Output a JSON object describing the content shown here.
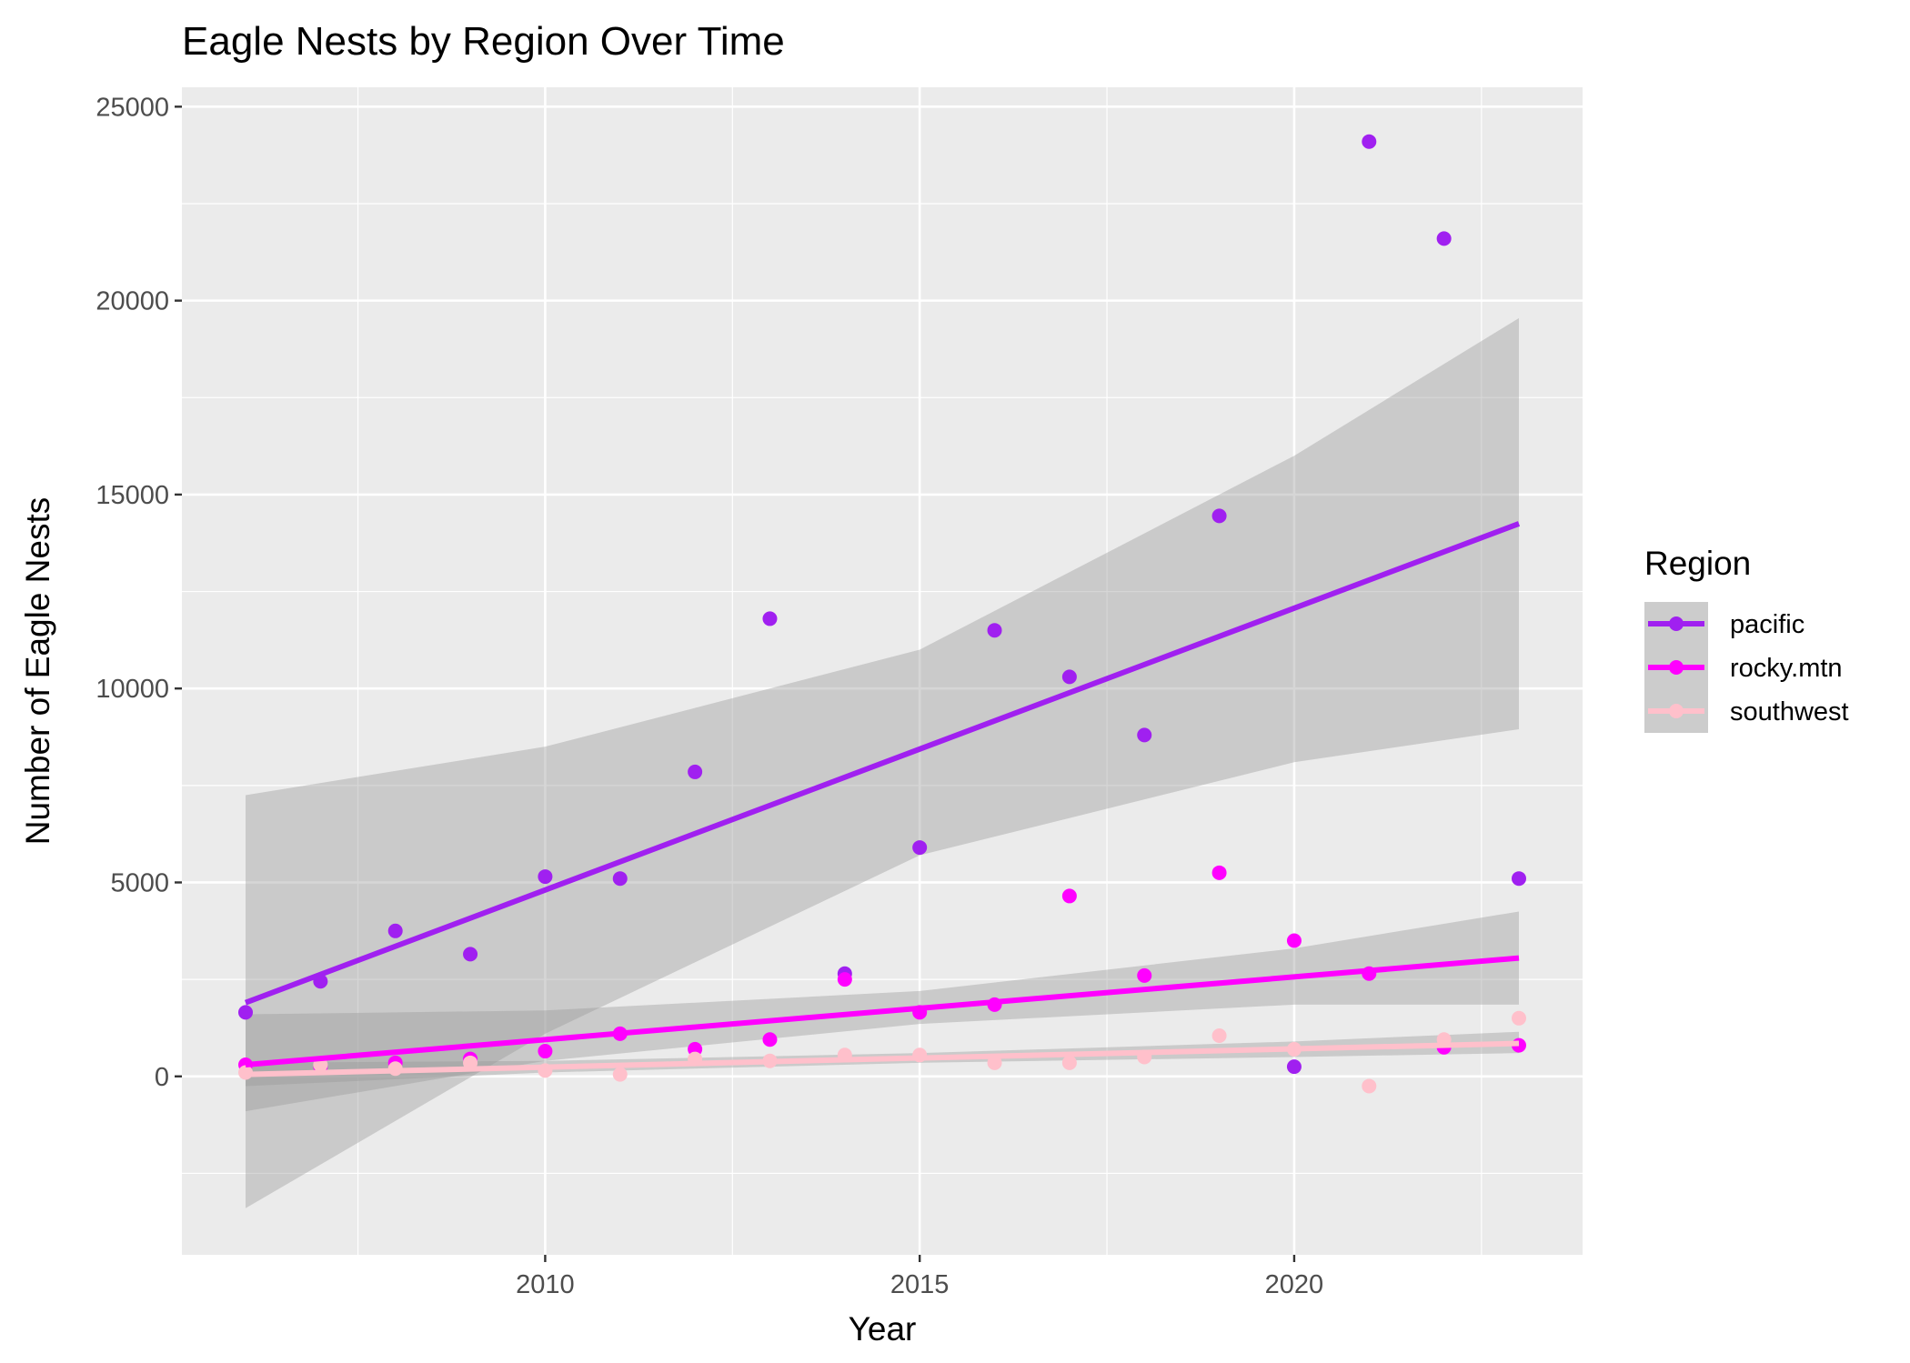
{
  "chart_data": {
    "type": "scatter",
    "title": "Eagle Nests by Region Over Time",
    "xlabel": "Year",
    "ylabel": "Number of Eagle Nests",
    "xlim": [
      2005.15,
      2023.85
    ],
    "ylim": [
      -4600,
      25500
    ],
    "x_ticks": [
      2010,
      2015,
      2020
    ],
    "y_ticks": [
      0,
      5000,
      10000,
      15000,
      20000,
      25000
    ],
    "grid": true,
    "legend_title": "Region",
    "legend_position": "right",
    "overlay": "linear regression line with grey 95% confidence band per series",
    "series": [
      {
        "name": "pacific",
        "color": "#a020f0",
        "x": [
          2006,
          2007,
          2008,
          2009,
          2010,
          2011,
          2012,
          2013,
          2014,
          2015,
          2016,
          2017,
          2018,
          2019,
          2020,
          2021,
          2022,
          2023
        ],
        "y": [
          1650,
          2450,
          3750,
          3150,
          5150,
          5100,
          7850,
          11800,
          2650,
          5900,
          11500,
          10300,
          8800,
          14450,
          250,
          24100,
          21600,
          5100
        ],
        "fit": {
          "x": [
            2006,
            2023
          ],
          "y": [
            1900,
            14250
          ]
        },
        "band": {
          "x": [
            2006,
            2010,
            2015,
            2020,
            2023
          ],
          "upper": [
            7250,
            8500,
            11000,
            16000,
            19550
          ],
          "lower": [
            -3400,
            1100,
            5700,
            8100,
            8950
          ]
        }
      },
      {
        "name": "rocky.mtn",
        "color": "#ff00ff",
        "x": [
          2006,
          2007,
          2008,
          2009,
          2010,
          2011,
          2012,
          2013,
          2014,
          2015,
          2016,
          2017,
          2018,
          2019,
          2020,
          2021,
          2022,
          2023
        ],
        "y": [
          300,
          250,
          350,
          450,
          650,
          1100,
          700,
          950,
          2500,
          1650,
          1850,
          4650,
          2600,
          5250,
          3500,
          2650,
          750,
          800
        ],
        "fit": {
          "x": [
            2006,
            2023
          ],
          "y": [
            300,
            3050
          ]
        },
        "band": {
          "x": [
            2006,
            2010,
            2015,
            2020,
            2023
          ],
          "upper": [
            1600,
            1700,
            2200,
            3300,
            4250
          ],
          "lower": [
            -900,
            400,
            1350,
            1850,
            1850
          ]
        }
      },
      {
        "name": "southwest",
        "color": "#ffc0cb",
        "x": [
          2006,
          2007,
          2008,
          2009,
          2010,
          2011,
          2012,
          2013,
          2014,
          2015,
          2016,
          2017,
          2018,
          2019,
          2020,
          2021,
          2022,
          2023
        ],
        "y": [
          100,
          300,
          200,
          350,
          150,
          50,
          450,
          400,
          550,
          550,
          350,
          350,
          500,
          1050,
          700,
          -250,
          950,
          1500
        ],
        "fit": {
          "x": [
            2006,
            2023
          ],
          "y": [
            50,
            850
          ]
        },
        "band": {
          "x": [
            2006,
            2010,
            2015,
            2020,
            2023
          ],
          "upper": [
            350,
            400,
            600,
            900,
            1150
          ],
          "lower": [
            -250,
            100,
            350,
            500,
            600
          ]
        }
      }
    ]
  }
}
